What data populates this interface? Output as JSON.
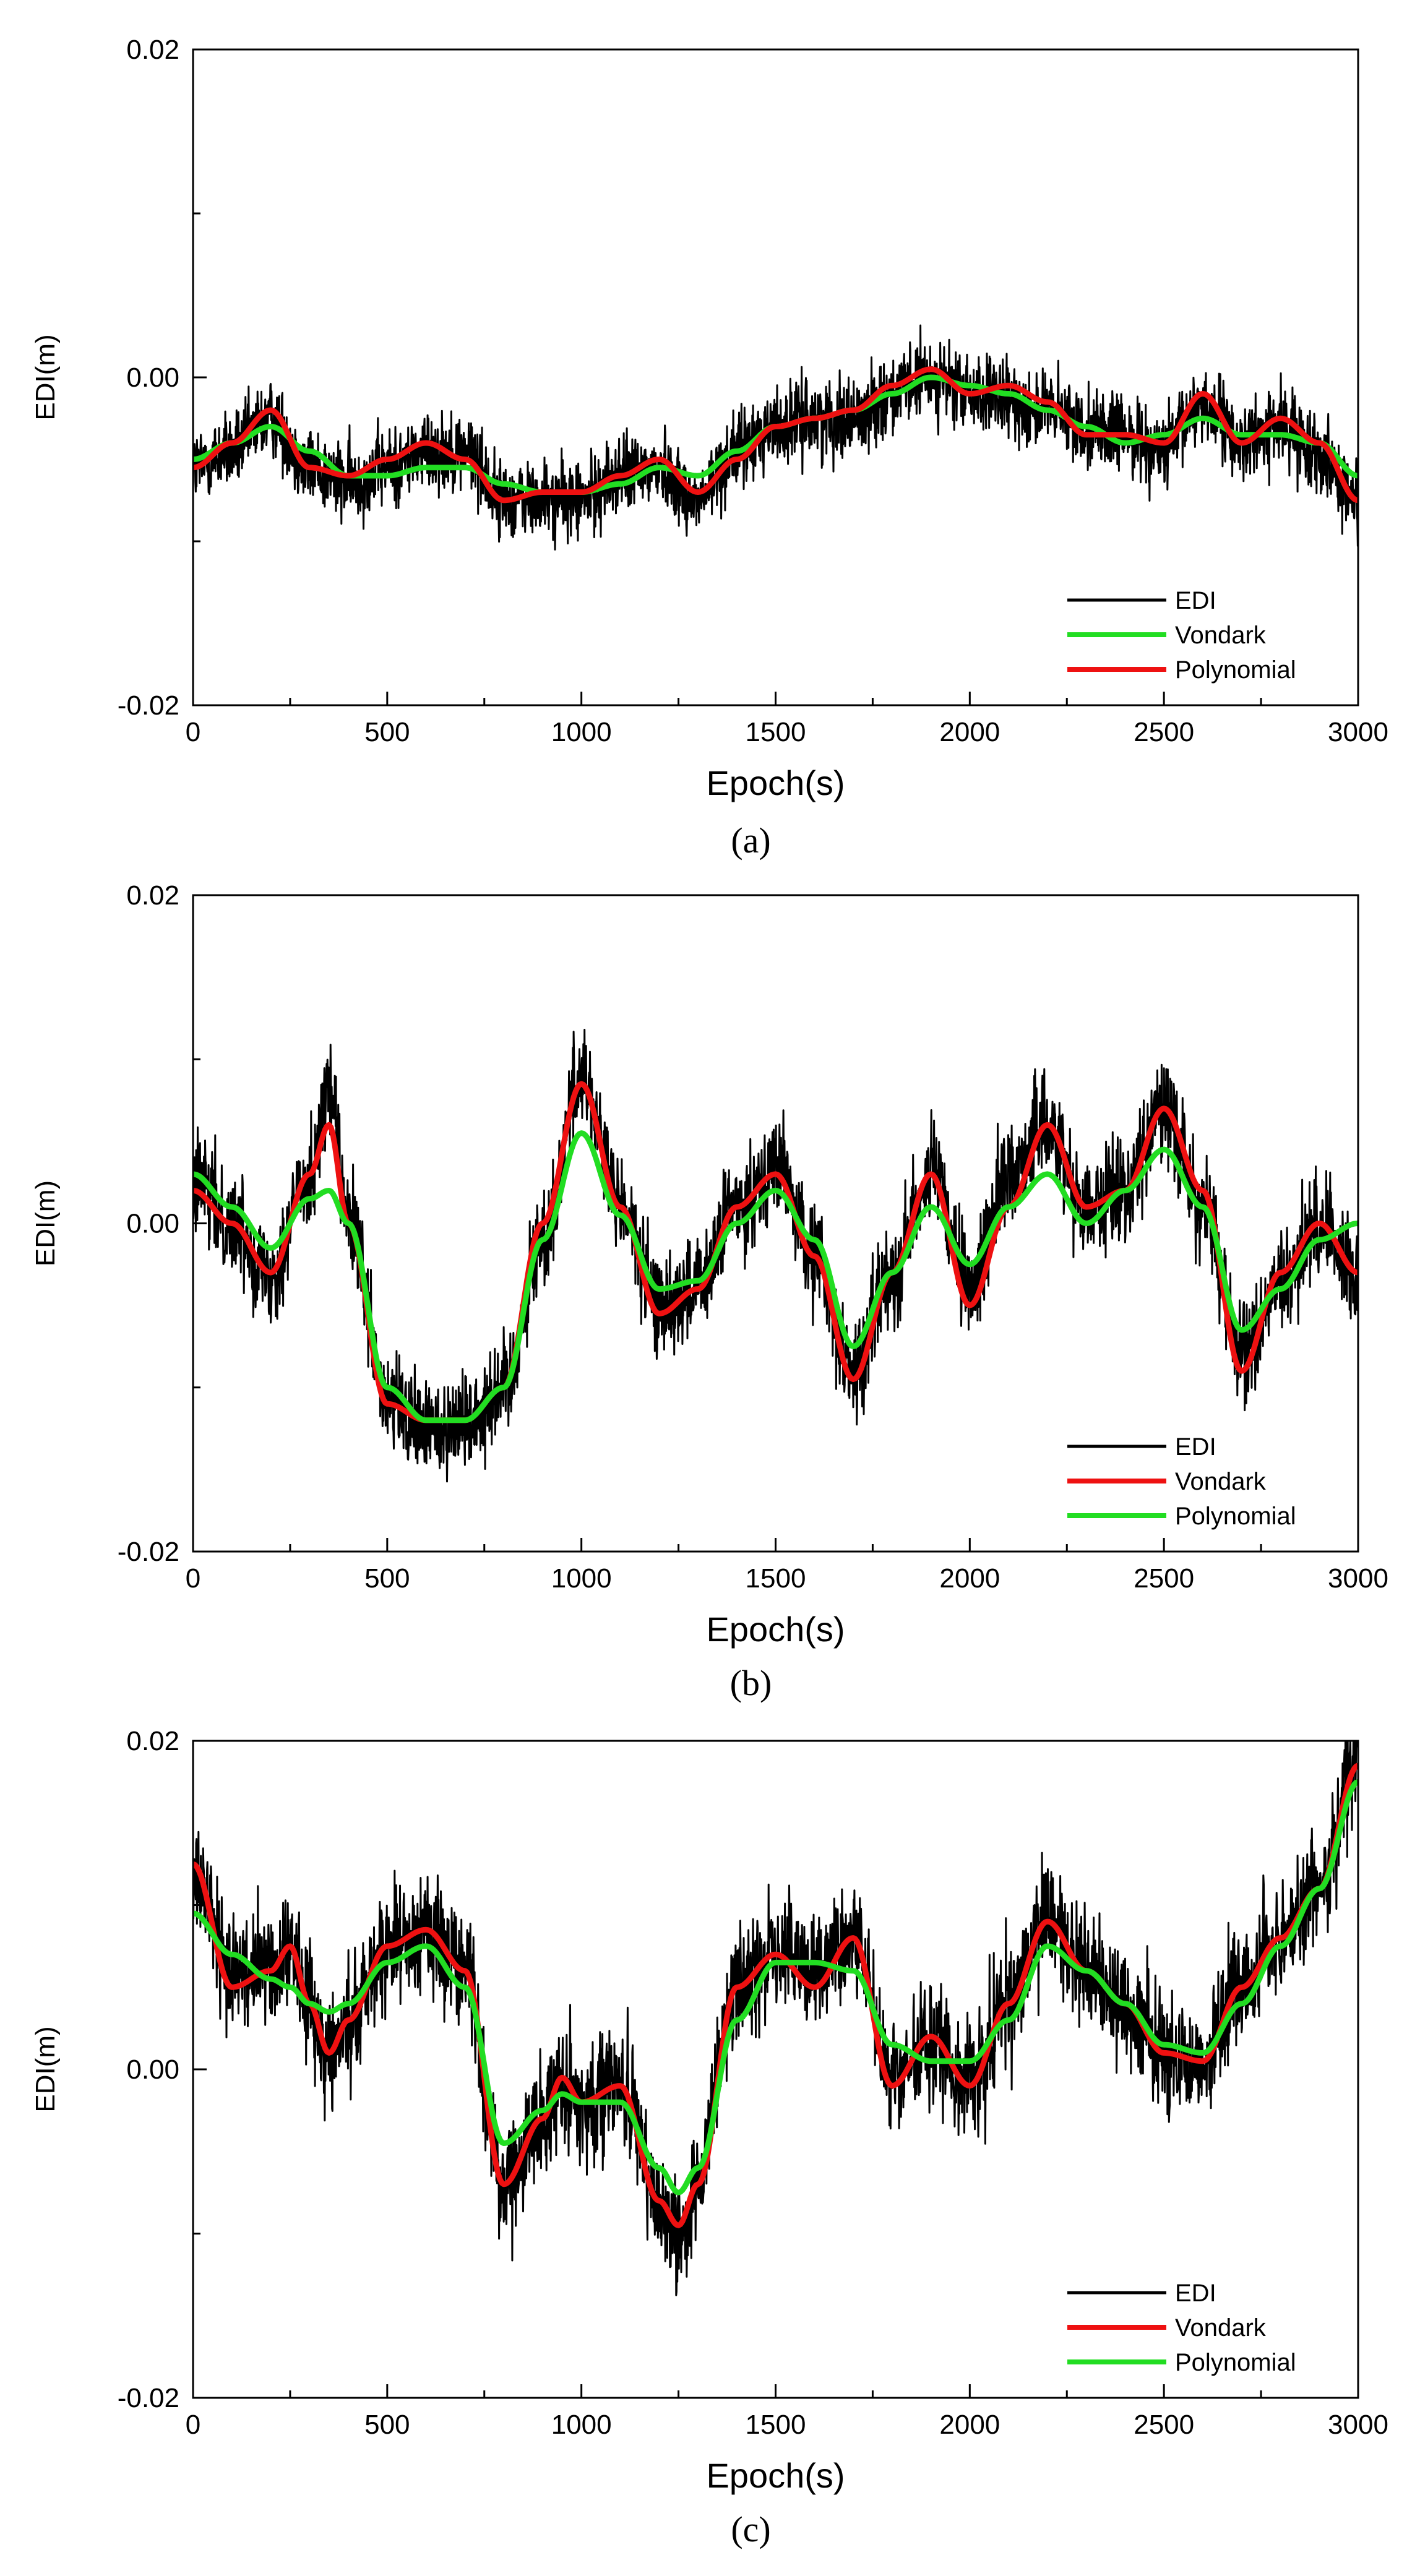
{
  "chart_data": [
    {
      "type": "line",
      "panel_label": "(a)",
      "xlabel": "Epoch(s)",
      "ylabel": "EDI(m)",
      "xlim": [
        0,
        3000
      ],
      "ylim": [
        -0.02,
        0.02
      ],
      "x_ticks": [
        "0",
        "500",
        "1000",
        "1500",
        "2000",
        "2500",
        "3000"
      ],
      "y_ticks": [
        "-0.02",
        "0.00",
        "0.02"
      ],
      "legend_position": "bottom-right",
      "x": [
        0,
        100,
        200,
        300,
        400,
        500,
        600,
        700,
        800,
        900,
        1000,
        1100,
        1200,
        1300,
        1400,
        1500,
        1600,
        1700,
        1800,
        1900,
        2000,
        2100,
        2200,
        2300,
        2400,
        2500,
        2600,
        2700,
        2800,
        2900,
        3000
      ],
      "series": [
        {
          "name": "EDI",
          "color": "#000000",
          "kind": "noisy",
          "noise": 0.0023,
          "values": [
            -0.0055,
            -0.0045,
            -0.0025,
            -0.0055,
            -0.0065,
            -0.0055,
            -0.0045,
            -0.0045,
            -0.0075,
            -0.0075,
            -0.0075,
            -0.006,
            -0.0055,
            -0.0075,
            -0.0045,
            -0.003,
            -0.0025,
            -0.0025,
            -0.001,
            0.0,
            -0.001,
            -0.0015,
            -0.002,
            -0.003,
            -0.0035,
            -0.0045,
            -0.0015,
            -0.004,
            -0.003,
            -0.0045,
            -0.0075
          ]
        },
        {
          "name": "Vondark",
          "color": "#22dd22",
          "values": [
            -0.005,
            -0.004,
            -0.003,
            -0.0045,
            -0.006,
            -0.006,
            -0.0055,
            -0.0055,
            -0.0065,
            -0.007,
            -0.007,
            -0.0065,
            -0.0055,
            -0.006,
            -0.0045,
            -0.003,
            -0.0025,
            -0.002,
            -0.001,
            0.0,
            -0.0005,
            -0.001,
            -0.002,
            -0.003,
            -0.004,
            -0.0035,
            -0.0025,
            -0.0035,
            -0.0035,
            -0.004,
            -0.006
          ]
        },
        {
          "name": "Polynomial",
          "color": "#ee1111",
          "values": [
            -0.0055,
            -0.004,
            -0.002,
            -0.0055,
            -0.006,
            -0.005,
            -0.004,
            -0.005,
            -0.0075,
            -0.007,
            -0.007,
            -0.006,
            -0.005,
            -0.007,
            -0.005,
            -0.003,
            -0.0025,
            -0.002,
            -0.0005,
            0.0005,
            -0.001,
            -0.0005,
            -0.0015,
            -0.0035,
            -0.0035,
            -0.004,
            -0.001,
            -0.004,
            -0.0025,
            -0.004,
            -0.0075
          ]
        }
      ]
    },
    {
      "type": "line",
      "panel_label": "(b)",
      "xlabel": "Epoch(s)",
      "ylabel": "EDI(m)",
      "xlim": [
        0,
        3000
      ],
      "ylim": [
        -0.02,
        0.02
      ],
      "x_ticks": [
        "0",
        "500",
        "1000",
        "1500",
        "2000",
        "2500",
        "3000"
      ],
      "y_ticks": [
        "-0.02",
        "0.00",
        "0.02"
      ],
      "legend_position": "bottom-right",
      "x": [
        0,
        100,
        200,
        300,
        350,
        400,
        500,
        600,
        700,
        800,
        900,
        1000,
        1100,
        1200,
        1300,
        1400,
        1500,
        1600,
        1700,
        1800,
        1900,
        2000,
        2100,
        2200,
        2300,
        2400,
        2500,
        2600,
        2700,
        2800,
        2900,
        3000
      ],
      "series": [
        {
          "name": "EDI",
          "color": "#000000",
          "kind": "noisy",
          "noise": 0.003,
          "values": [
            0.0025,
            0.0,
            -0.003,
            0.003,
            0.008,
            0.0,
            -0.011,
            -0.0125,
            -0.012,
            -0.01,
            -0.001,
            0.009,
            0.001,
            -0.005,
            -0.004,
            0.001,
            0.0035,
            -0.002,
            -0.009,
            -0.003,
            0.003,
            -0.004,
            0.003,
            0.006,
            0.001,
            0.002,
            0.007,
            0.001,
            -0.008,
            -0.004,
            0.0,
            -0.003
          ]
        },
        {
          "name": "Vondark",
          "color": "#ee1111",
          "values": [
            0.002,
            0.0,
            -0.003,
            0.003,
            0.006,
            0.0,
            -0.011,
            -0.012,
            -0.012,
            -0.01,
            0.0,
            0.0085,
            0.001,
            -0.0055,
            -0.004,
            0.001,
            0.003,
            -0.002,
            -0.0095,
            -0.003,
            0.003,
            -0.005,
            0.001,
            0.006,
            0.001,
            0.002,
            0.007,
            0.002,
            -0.009,
            -0.003,
            0.0,
            -0.003
          ]
        },
        {
          "name": "Polynomial",
          "color": "#22dd22",
          "values": [
            0.003,
            0.001,
            -0.0015,
            0.0015,
            0.002,
            0.0,
            -0.01,
            -0.012,
            -0.012,
            -0.01,
            -0.001,
            0.0055,
            0.0005,
            -0.004,
            -0.0035,
            0.0,
            0.002,
            -0.001,
            -0.0075,
            -0.003,
            0.001,
            -0.0025,
            0.001,
            0.003,
            0.0,
            0.002,
            0.0045,
            0.001,
            -0.0065,
            -0.004,
            -0.001,
            0.0
          ]
        }
      ]
    },
    {
      "type": "line",
      "panel_label": "(c)",
      "xlabel": "Epoch(s)",
      "ylabel": "EDI(m)",
      "xlim": [
        0,
        3000
      ],
      "ylim": [
        -0.02,
        0.02
      ],
      "x_ticks": [
        "0",
        "500",
        "1000",
        "1500",
        "2000",
        "2500",
        "3000"
      ],
      "y_ticks": [
        "-0.02",
        "0.00",
        "0.02"
      ],
      "legend_position": "bottom-right",
      "x": [
        0,
        100,
        200,
        250,
        300,
        350,
        400,
        500,
        600,
        700,
        800,
        900,
        950,
        1000,
        1100,
        1200,
        1250,
        1300,
        1400,
        1500,
        1600,
        1700,
        1800,
        1900,
        2000,
        2100,
        2200,
        2300,
        2400,
        2500,
        2600,
        2700,
        2800,
        2900,
        3000
      ],
      "series": [
        {
          "name": "EDI",
          "color": "#000000",
          "kind": "noisy",
          "noise": 0.0035,
          "values": [
            0.012,
            0.006,
            0.006,
            0.0075,
            0.004,
            0.001,
            0.003,
            0.0075,
            0.0085,
            0.006,
            -0.007,
            -0.003,
            -0.001,
            -0.002,
            -0.001,
            -0.008,
            -0.01,
            -0.007,
            0.005,
            0.007,
            0.006,
            0.008,
            -0.0005,
            0.0015,
            -0.0005,
            0.004,
            0.009,
            0.006,
            0.004,
            0.001,
            0.0005,
            0.005,
            0.008,
            0.011,
            0.019
          ]
        },
        {
          "name": "Vondark",
          "color": "#ee1111",
          "values": [
            0.0125,
            0.005,
            0.006,
            0.0075,
            0.004,
            0.001,
            0.003,
            0.0075,
            0.0085,
            0.006,
            -0.007,
            -0.003,
            -0.0005,
            -0.002,
            -0.001,
            -0.008,
            -0.0095,
            -0.007,
            0.005,
            0.007,
            0.005,
            0.008,
            -0.001,
            0.002,
            -0.001,
            0.004,
            0.009,
            0.006,
            0.004,
            0.001,
            0.0005,
            0.005,
            0.008,
            0.011,
            0.0185
          ]
        },
        {
          "name": "Polynomial",
          "color": "#22dd22",
          "values": [
            0.0095,
            0.007,
            0.0055,
            0.005,
            0.004,
            0.0035,
            0.004,
            0.0065,
            0.0075,
            0.005,
            -0.0045,
            -0.0025,
            -0.0015,
            -0.002,
            -0.002,
            -0.006,
            -0.0075,
            -0.006,
            0.003,
            0.0065,
            0.0065,
            0.006,
            0.0015,
            0.0005,
            0.0005,
            0.003,
            0.0075,
            0.006,
            0.004,
            0.0015,
            0.001,
            0.004,
            0.0075,
            0.011,
            0.0175
          ]
        }
      ]
    }
  ]
}
